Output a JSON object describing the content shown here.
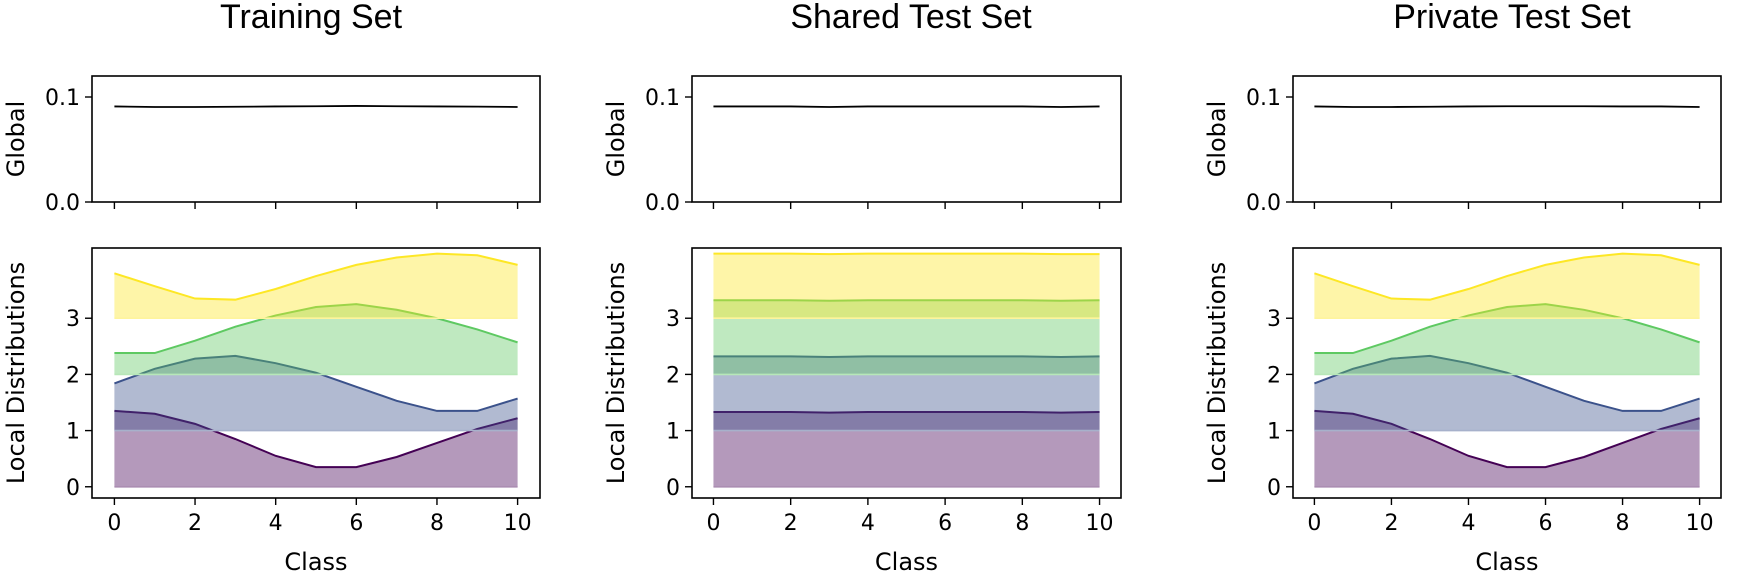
{
  "figure": {
    "titles": [
      "Training Set",
      "Shared Test Set",
      "Private Test Set"
    ]
  },
  "chart_data": [
    {
      "type": "line",
      "title": "Training Set",
      "ylabel": "Global",
      "xlabel": "",
      "x": [
        0,
        1,
        2,
        3,
        4,
        5,
        6,
        7,
        8,
        9,
        10
      ],
      "ylim": [
        0,
        0.12
      ],
      "yticks": [
        "0.0",
        "0.1"
      ],
      "xticks": [
        0,
        2,
        4,
        6,
        8,
        10
      ],
      "series": [
        {
          "values": [
            0.091,
            0.0905,
            0.0905,
            0.0907,
            0.091,
            0.0912,
            0.0915,
            0.0912,
            0.091,
            0.0908,
            0.0905
          ]
        }
      ],
      "color": "#000000",
      "grid": false
    },
    {
      "type": "line",
      "title": "Shared Test Set",
      "ylabel": "Global",
      "xlabel": "",
      "x": [
        0,
        1,
        2,
        3,
        4,
        5,
        6,
        7,
        8,
        9,
        10
      ],
      "ylim": [
        0,
        0.12
      ],
      "yticks": [
        "0.0",
        "0.1"
      ],
      "xticks": [
        0,
        2,
        4,
        6,
        8,
        10
      ],
      "series": [
        {
          "values": [
            0.091,
            0.091,
            0.091,
            0.0905,
            0.091,
            0.091,
            0.091,
            0.091,
            0.091,
            0.0905,
            0.091
          ]
        }
      ],
      "color": "#000000",
      "grid": false
    },
    {
      "type": "line",
      "title": "Private Test Set",
      "ylabel": "Global",
      "xlabel": "",
      "x": [
        0,
        1,
        2,
        3,
        4,
        5,
        6,
        7,
        8,
        9,
        10
      ],
      "ylim": [
        0,
        0.12
      ],
      "yticks": [
        "0.0",
        "0.1"
      ],
      "xticks": [
        0,
        2,
        4,
        6,
        8,
        10
      ],
      "series": [
        {
          "values": [
            0.091,
            0.0905,
            0.0905,
            0.0907,
            0.091,
            0.0912,
            0.0912,
            0.0912,
            0.091,
            0.091,
            0.0905
          ]
        }
      ],
      "color": "#000000",
      "grid": false
    },
    {
      "type": "area",
      "ylabel": "Local Distributions",
      "xlabel": "Class",
      "x": [
        0,
        1,
        2,
        3,
        4,
        5,
        6,
        7,
        8,
        9,
        10
      ],
      "ylim": [
        -0.2,
        4.25
      ],
      "yticks": [
        0,
        1,
        2,
        3
      ],
      "xticks": [
        0,
        2,
        4,
        6,
        8,
        10
      ],
      "grid": false,
      "series": [
        {
          "baseline": 0,
          "color": "#440154",
          "values": [
            1.35,
            1.3,
            1.12,
            0.85,
            0.55,
            0.35,
            0.35,
            0.53,
            0.78,
            1.03,
            1.22
          ]
        },
        {
          "baseline": 1,
          "color": "#3b528b",
          "values": [
            1.84,
            2.1,
            2.28,
            2.33,
            2.2,
            2.03,
            1.78,
            1.53,
            1.35,
            1.35,
            1.57
          ]
        },
        {
          "baseline": 2,
          "color": "#5ec962",
          "values": [
            2.38,
            2.38,
            2.6,
            2.85,
            3.05,
            3.2,
            3.25,
            3.15,
            3.0,
            2.8,
            2.57
          ]
        },
        {
          "baseline": 3,
          "color": "#fde725",
          "values": [
            3.8,
            3.57,
            3.35,
            3.33,
            3.52,
            3.75,
            3.95,
            4.08,
            4.15,
            4.12,
            3.95
          ]
        }
      ]
    },
    {
      "type": "area",
      "ylabel": "Local Distributions",
      "xlabel": "Class",
      "x": [
        0,
        1,
        2,
        3,
        4,
        5,
        6,
        7,
        8,
        9,
        10
      ],
      "ylim": [
        -0.2,
        4.25
      ],
      "yticks": [
        0,
        1,
        2,
        3
      ],
      "xticks": [
        0,
        2,
        4,
        6,
        8,
        10
      ],
      "grid": false,
      "series": [
        {
          "baseline": 0,
          "color": "#440154",
          "values": [
            1.33,
            1.33,
            1.33,
            1.32,
            1.33,
            1.33,
            1.33,
            1.33,
            1.33,
            1.32,
            1.33
          ]
        },
        {
          "baseline": 1,
          "color": "#3b528b",
          "values": [
            2.32,
            2.32,
            2.32,
            2.31,
            2.32,
            2.32,
            2.32,
            2.32,
            2.32,
            2.31,
            2.32
          ]
        },
        {
          "baseline": 2,
          "color": "#5ec962",
          "values": [
            3.32,
            3.32,
            3.32,
            3.31,
            3.32,
            3.32,
            3.32,
            3.32,
            3.32,
            3.31,
            3.32
          ]
        },
        {
          "baseline": 3,
          "color": "#fde725",
          "values": [
            4.15,
            4.15,
            4.15,
            4.14,
            4.15,
            4.15,
            4.15,
            4.15,
            4.15,
            4.14,
            4.14
          ]
        }
      ]
    },
    {
      "type": "area",
      "ylabel": "Local Distributions",
      "xlabel": "Class",
      "x": [
        0,
        1,
        2,
        3,
        4,
        5,
        6,
        7,
        8,
        9,
        10
      ],
      "ylim": [
        -0.2,
        4.25
      ],
      "yticks": [
        0,
        1,
        2,
        3
      ],
      "xticks": [
        0,
        2,
        4,
        6,
        8,
        10
      ],
      "grid": false,
      "series": [
        {
          "baseline": 0,
          "color": "#440154",
          "values": [
            1.35,
            1.3,
            1.12,
            0.85,
            0.55,
            0.35,
            0.35,
            0.53,
            0.78,
            1.03,
            1.22
          ]
        },
        {
          "baseline": 1,
          "color": "#3b528b",
          "values": [
            1.84,
            2.1,
            2.28,
            2.33,
            2.2,
            2.03,
            1.78,
            1.53,
            1.35,
            1.35,
            1.57
          ]
        },
        {
          "baseline": 2,
          "color": "#5ec962",
          "values": [
            2.38,
            2.38,
            2.6,
            2.85,
            3.05,
            3.2,
            3.25,
            3.15,
            3.0,
            2.8,
            2.57
          ]
        },
        {
          "baseline": 3,
          "color": "#fde725",
          "values": [
            3.8,
            3.57,
            3.35,
            3.33,
            3.52,
            3.75,
            3.95,
            4.08,
            4.15,
            4.12,
            3.95
          ]
        }
      ]
    }
  ]
}
